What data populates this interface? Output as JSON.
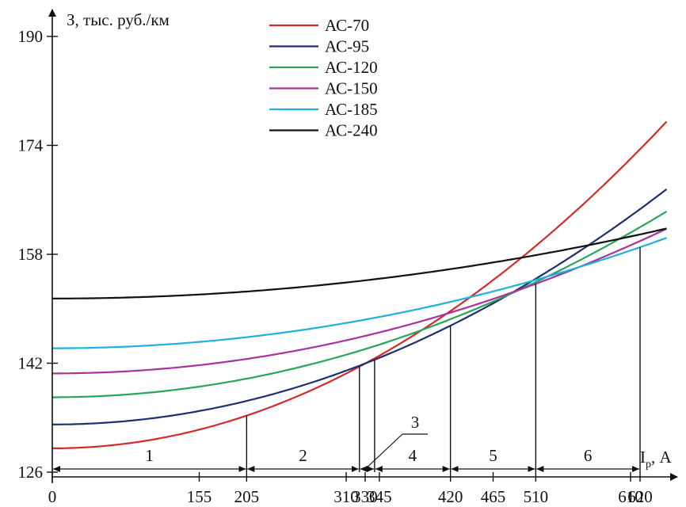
{
  "chart_data": {
    "type": "line",
    "ylabel": "З, тыс. руб./км",
    "xlabel_main": "I",
    "xlabel_sub": "р",
    "xlabel_unit": ", А",
    "xlim": [
      0,
      650
    ],
    "ylim": [
      126,
      192
    ],
    "x_ticks": [
      0,
      155,
      205,
      310,
      330,
      345,
      420,
      465,
      510,
      610,
      620
    ],
    "y_ticks": [
      126,
      142,
      158,
      174,
      190
    ],
    "legend_position": "top-center",
    "series": [
      {
        "name": "АС-70",
        "color": "#d42a2a",
        "a": 129.5,
        "k": 0.0001143
      },
      {
        "name": "АС-95",
        "color": "#1d2f6f",
        "a": 133.0,
        "k": 8.23e-05
      },
      {
        "name": "АС-120",
        "color": "#27a55a",
        "a": 137.0,
        "k": 6.5e-05
      },
      {
        "name": "АС-150",
        "color": "#a8329e",
        "a": 140.5,
        "k": 5.06e-05
      },
      {
        "name": "АС-185",
        "color": "#1fb0de",
        "a": 144.2,
        "k": 3.86e-05
      },
      {
        "name": "АС-240",
        "color": "#111111",
        "a": 151.5,
        "k": 2.45e-05
      }
    ],
    "curve_samples": [
      {
        "x": 0,
        "y": [
          129.5,
          133.0,
          137.0,
          140.5,
          144.2,
          151.5
        ]
      },
      {
        "x": 100,
        "y": [
          130.6,
          133.8,
          137.7,
          141.0,
          144.6,
          151.7
        ]
      },
      {
        "x": 205,
        "y": [
          134.3,
          136.5,
          139.7,
          142.6,
          145.8,
          152.5
        ]
      },
      {
        "x": 300,
        "y": [
          139.8,
          140.4,
          142.9,
          145.1,
          147.7,
          153.7
        ]
      },
      {
        "x": 330,
        "y": [
          141.9,
          142.0,
          144.1,
          146.0,
          148.4,
          154.2
        ]
      },
      {
        "x": 420,
        "y": [
          149.6,
          147.5,
          148.5,
          149.4,
          151.0,
          155.8
        ]
      },
      {
        "x": 510,
        "y": [
          159.2,
          154.4,
          153.9,
          153.7,
          154.2,
          157.9
        ]
      },
      {
        "x": 620,
        "y": [
          173.4,
          164.6,
          162.0,
          160.0,
          159.0,
          160.9
        ]
      }
    ],
    "intersection_drops": [
      205,
      324,
      340,
      420,
      510,
      620
    ],
    "zones": [
      {
        "label": "1",
        "from": 0,
        "to": 205
      },
      {
        "label": "2",
        "from": 205,
        "to": 324
      },
      {
        "label": "3",
        "from": 324,
        "to": 340
      },
      {
        "label": "4",
        "from": 340,
        "to": 420
      },
      {
        "label": "5",
        "from": 420,
        "to": 510
      },
      {
        "label": "6",
        "from": 510,
        "to": 620
      }
    ]
  }
}
